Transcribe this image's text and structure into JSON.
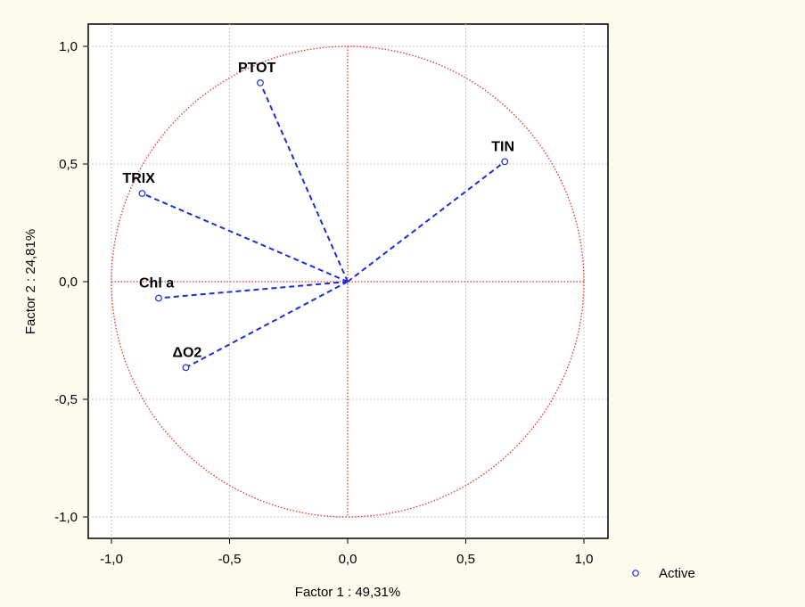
{
  "chart_data": {
    "type": "scatter",
    "title": "",
    "xlabel": "Factor 1 : 49,31%",
    "ylabel": "Factor 2 : 24,81%",
    "xlim": [
      -1.1,
      1.1
    ],
    "ylim": [
      -1.1,
      1.1
    ],
    "xticks": [
      -1.0,
      -0.5,
      0.0,
      0.5,
      1.0
    ],
    "yticks": [
      -1.0,
      -0.5,
      0.0,
      0.5,
      1.0
    ],
    "xtick_labels": [
      "-1,0",
      "-0,5",
      "0,0",
      "0,5",
      "1,0"
    ],
    "ytick_labels": [
      "1,0",
      "0,5",
      "0,0",
      "-0,5",
      "-1,0"
    ],
    "ytick_values": [
      1.0,
      0.5,
      0.0,
      -0.5,
      -1.0
    ],
    "grid": true,
    "unit_circle": true,
    "legend": {
      "position": "bottom-right",
      "entries": [
        "Active"
      ]
    },
    "series": [
      {
        "name": "Active",
        "points": [
          {
            "label": "PTOT",
            "x": -0.37,
            "y": 0.845
          },
          {
            "label": "TIN",
            "x": 0.665,
            "y": 0.51
          },
          {
            "label": "TRIX",
            "x": -0.87,
            "y": 0.375
          },
          {
            "label": "Chl a",
            "x": -0.8,
            "y": -0.07
          },
          {
            "label": "ΔO2",
            "x": -0.685,
            "y": -0.365
          }
        ]
      }
    ],
    "colors": {
      "circle": "#e8322e",
      "axes_lines": "#e8322e",
      "vectors": "#1a2fd9",
      "points": "#1a2fd9",
      "grid": "#c8c8c8"
    }
  }
}
